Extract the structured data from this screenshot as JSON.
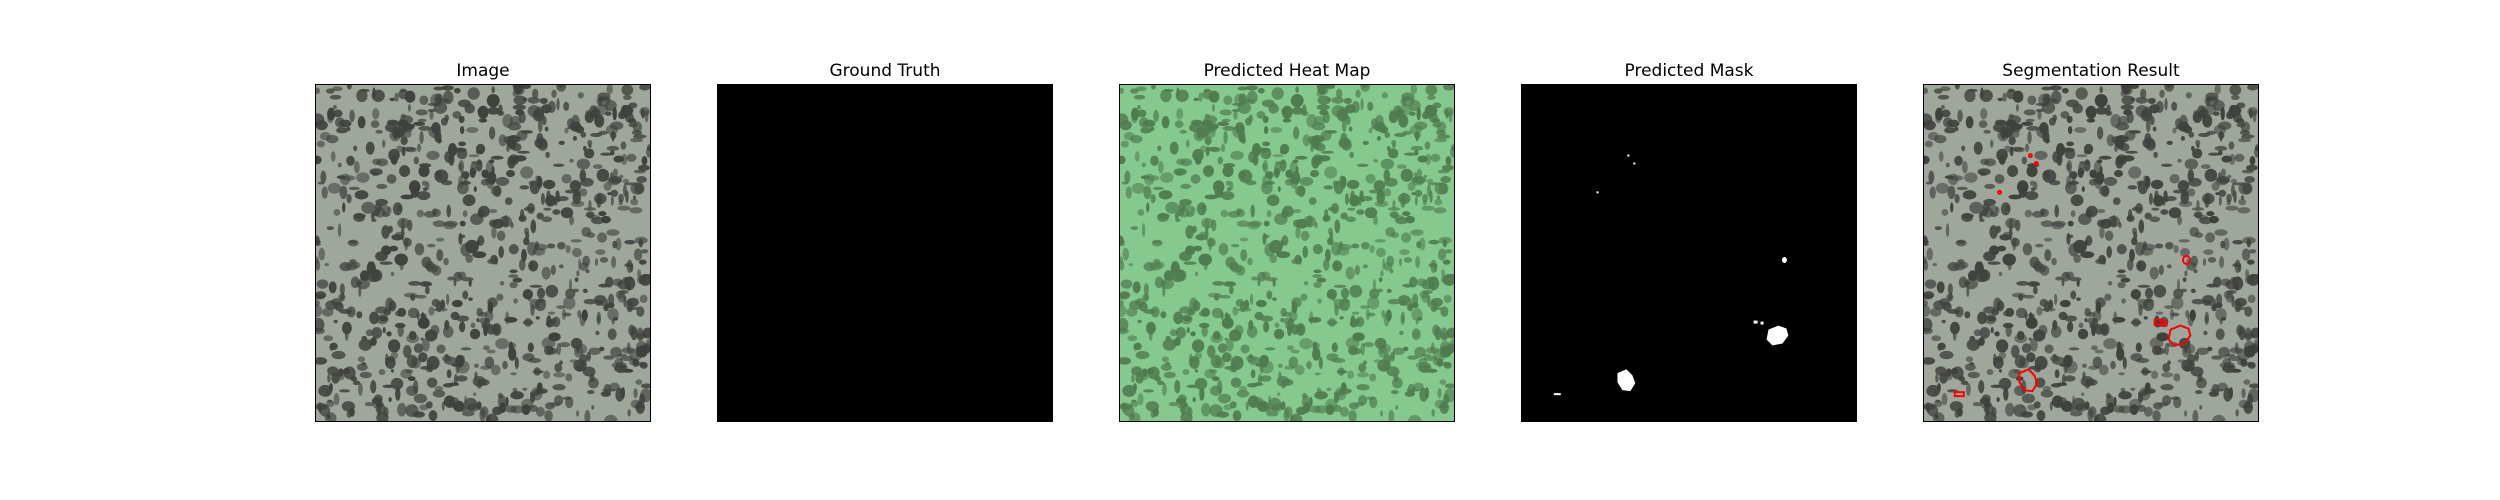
{
  "figure": {
    "panels": [
      {
        "title": "Image",
        "kind": "texture"
      },
      {
        "title": "Ground Truth",
        "kind": "blank-mask"
      },
      {
        "title": "Predicted Heat Map",
        "kind": "heatmap-texture"
      },
      {
        "title": "Predicted Mask",
        "kind": "binary-mask"
      },
      {
        "title": "Segmentation Result",
        "kind": "texture-with-contours"
      }
    ]
  },
  "colors": {
    "texture_bg": "#9fa79d",
    "texture_spots": "#3f413d",
    "heatmap_bg": "#86c98f",
    "heatmap_spots": "#4f7b4f",
    "mask_bg": "#000000",
    "mask_fg": "#ffffff",
    "contour": "#ff0000"
  }
}
